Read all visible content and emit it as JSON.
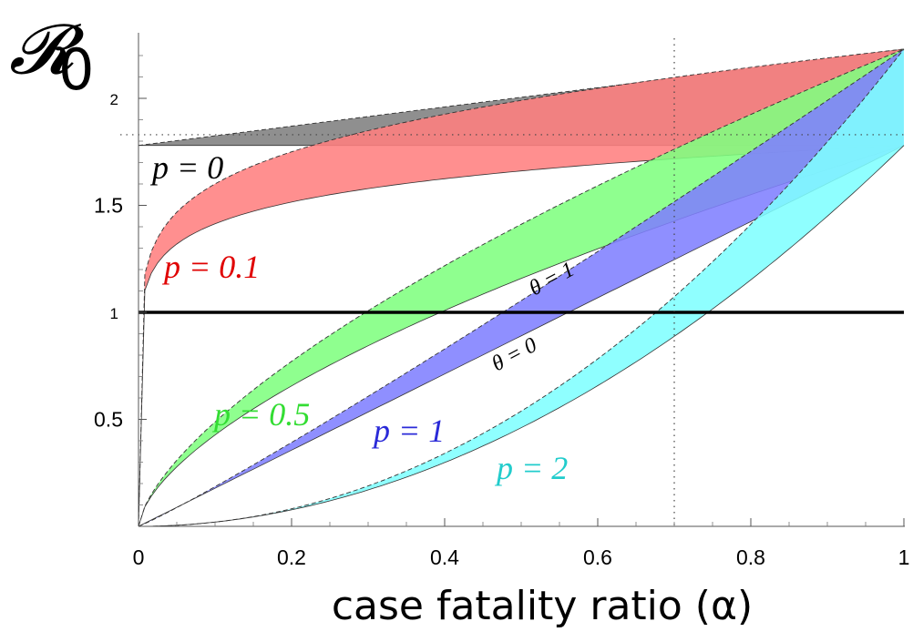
{
  "chart_data": {
    "type": "area",
    "title": "",
    "ylabel": "𝓡0",
    "xlabel": "case fatality ratio (α)",
    "xlim": [
      0,
      1
    ],
    "ylim": [
      0,
      2.3
    ],
    "x_ticks": [
      {
        "value": 0,
        "label": "0"
      },
      {
        "value": 0.2,
        "label": "0.2"
      },
      {
        "value": 0.4,
        "label": "0.4"
      },
      {
        "value": 0.6,
        "label": "0.6"
      },
      {
        "value": 0.8,
        "label": "0.8"
      },
      {
        "value": 1,
        "label": "1"
      }
    ],
    "y_ticks": [
      {
        "value": 0.5,
        "label": "0.5"
      },
      {
        "value": 1,
        "label": "1"
      },
      {
        "value": 1.5,
        "label": "1.5"
      },
      {
        "value": 2,
        "label": "2"
      }
    ],
    "reference_lines": [
      {
        "axis": "y",
        "value": 1,
        "style": "solid"
      },
      {
        "axis": "y",
        "value": 1.83,
        "style": "dotted"
      },
      {
        "axis": "x",
        "value": 0.7,
        "style": "dotted"
      }
    ],
    "bands": [
      {
        "p": 0,
        "label": "p = 0",
        "color": "#808080",
        "lower_start": 1.78,
        "lower_end": 1.78,
        "upper_start": 1.78,
        "upper_end": 2.23
      },
      {
        "p": 0.1,
        "label": "p = 0.1",
        "color": "#ff8080",
        "lower_start": 0,
        "lower_end": 1.78,
        "upper_start": 0,
        "upper_end": 2.23
      },
      {
        "p": 0.5,
        "label": "p = 0.5",
        "color": "#80ff80",
        "lower_start": 0,
        "lower_end": 1.78,
        "upper_start": 0,
        "upper_end": 2.23
      },
      {
        "p": 1,
        "label": "p = 1",
        "color": "#8080ff",
        "lower_start": 0,
        "lower_end": 1.78,
        "upper_start": 0,
        "upper_end": 2.23
      },
      {
        "p": 2,
        "label": "p = 2",
        "color": "#80ffff",
        "lower_start": 0,
        "lower_end": 1.78,
        "upper_start": 0,
        "upper_end": 2.23
      }
    ],
    "annotations": [
      {
        "text": "θ = 1",
        "x": 0.58,
        "y": 1.16,
        "angle": -28
      },
      {
        "text": "θ = 0",
        "x": 0.52,
        "y": 0.78,
        "angle": -28
      }
    ],
    "label_colors": {
      "p0": "#000000",
      "p0.1": "#e00000",
      "p0.5": "#33dd33",
      "p1": "#2a2ad8",
      "p2": "#22cccc"
    },
    "labels": {
      "p0": "p = 0",
      "p01": "p = 0.1",
      "p05": "p = 0.5",
      "p1": "p = 1",
      "p2": "p = 2",
      "theta1": "θ = 1",
      "theta0": "θ = 0"
    }
  }
}
